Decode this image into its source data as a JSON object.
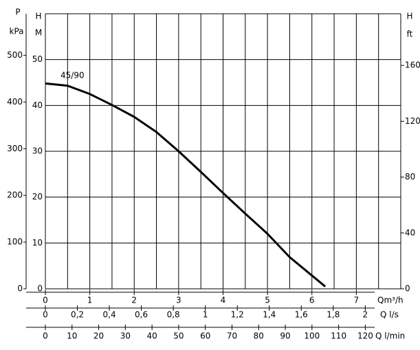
{
  "chart_data": {
    "type": "line",
    "x": [
      0,
      0.5,
      1,
      1.5,
      2,
      2.5,
      3,
      3.5,
      4,
      4.5,
      5,
      5.5,
      6.3
    ],
    "series": [
      {
        "name": "45/90",
        "color": "#000000",
        "values": [
          44.8,
          44.3,
          42.5,
          40.1,
          37.5,
          34.2,
          30,
          25.5,
          20.9,
          16.4,
          12,
          6.9,
          0.5
        ]
      }
    ],
    "xlabel": "Qm³/h",
    "xlim": [
      0,
      8
    ],
    "xticks": [
      0,
      1,
      2,
      3,
      4,
      5,
      6,
      7
    ],
    "xgrid": [
      0.5,
      1,
      1.5,
      2,
      2.5,
      3,
      3.5,
      4,
      4.5,
      5,
      5.5,
      6,
      6.5,
      7,
      7.5,
      8
    ],
    "x2label": "Q l/s",
    "x2lim": [
      0,
      2.222
    ],
    "x2ticks": [
      0,
      {
        "value": 0.2,
        "label": "0,2"
      },
      {
        "value": 0.4,
        "label": "0,4"
      },
      {
        "value": 0.6,
        "label": "0,6"
      },
      {
        "value": 0.8,
        "label": "0,8"
      },
      1,
      {
        "value": 1.2,
        "label": "1,2"
      },
      {
        "value": 1.4,
        "label": "1,4"
      },
      {
        "value": 1.6,
        "label": "1,6"
      },
      {
        "value": 1.8,
        "label": "1,8"
      },
      2
    ],
    "x3label": "Q l/min",
    "x3lim": [
      0,
      133.3
    ],
    "x3ticks": [
      0,
      10,
      20,
      30,
      40,
      50,
      60,
      70,
      80,
      90,
      100,
      110,
      120
    ],
    "ylabel": [
      "H",
      "M"
    ],
    "ylim": [
      0,
      60
    ],
    "yticks": [
      0,
      10,
      20,
      30,
      40,
      50
    ],
    "plabel": [
      "P",
      "kPa"
    ],
    "plim": [
      0,
      589
    ],
    "pticks": [
      0,
      100,
      200,
      300,
      400,
      500
    ],
    "y2label": [
      "H",
      "ft"
    ],
    "y2lim": [
      0,
      197
    ],
    "y2ticks": [
      0,
      40,
      80,
      120,
      160
    ],
    "grid": true
  }
}
